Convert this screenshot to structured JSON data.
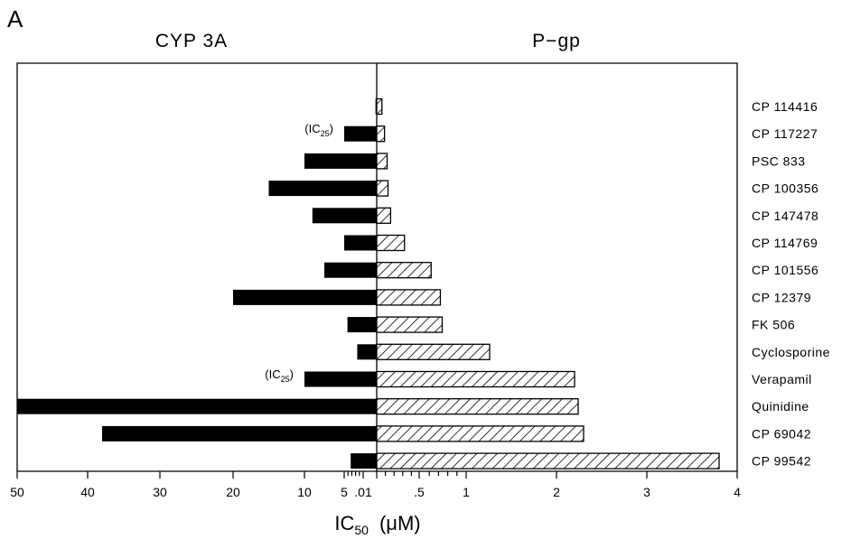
{
  "chart_data": {
    "type": "bar",
    "panel_letter": "A",
    "left_title": "CYP 3A",
    "right_title": "P−gp",
    "xlabel_main": "IC",
    "xlabel_sub": "50",
    "xlabel_unit": "(μM)",
    "note_main": "(IC",
    "note_sub": "25",
    "note_close": ")",
    "categories": [
      "CP 114416",
      "CP 117227",
      "PSC 833",
      "CP 100356",
      "CP 147478",
      "CP 114769",
      "CP 101556",
      "CP 12379",
      "FK 506",
      "Cyclosporine",
      "Verapamil",
      "Quinidine",
      "CP 69042",
      "CP 99542"
    ],
    "series": [
      {
        "name": "CYP 3A",
        "values": [
          0.2,
          5,
          10,
          15,
          9,
          5,
          7.5,
          20,
          4.5,
          3,
          10,
          50,
          38,
          4
        ],
        "note_indices": [
          1,
          10
        ],
        "fill": "#000000"
      },
      {
        "name": "P−gp",
        "values": [
          0.06,
          0.09,
          0.12,
          0.13,
          0.16,
          0.32,
          0.62,
          0.72,
          0.74,
          1.26,
          2.2,
          2.24,
          2.3,
          3.8
        ],
        "fill": "hatched"
      }
    ],
    "left_axis": {
      "ticks": [
        50,
        40,
        30,
        20,
        10,
        5,
        0.01
      ],
      "tick_labels": [
        "50",
        "40",
        "30",
        "20",
        "10",
        "5",
        ".01"
      ],
      "range": [
        0,
        50
      ]
    },
    "right_axis": {
      "ticks": [
        0.5,
        1,
        2,
        3,
        4
      ],
      "tick_labels": [
        ".5",
        "1",
        "2",
        "3",
        "4"
      ],
      "range": [
        0,
        4
      ]
    }
  }
}
